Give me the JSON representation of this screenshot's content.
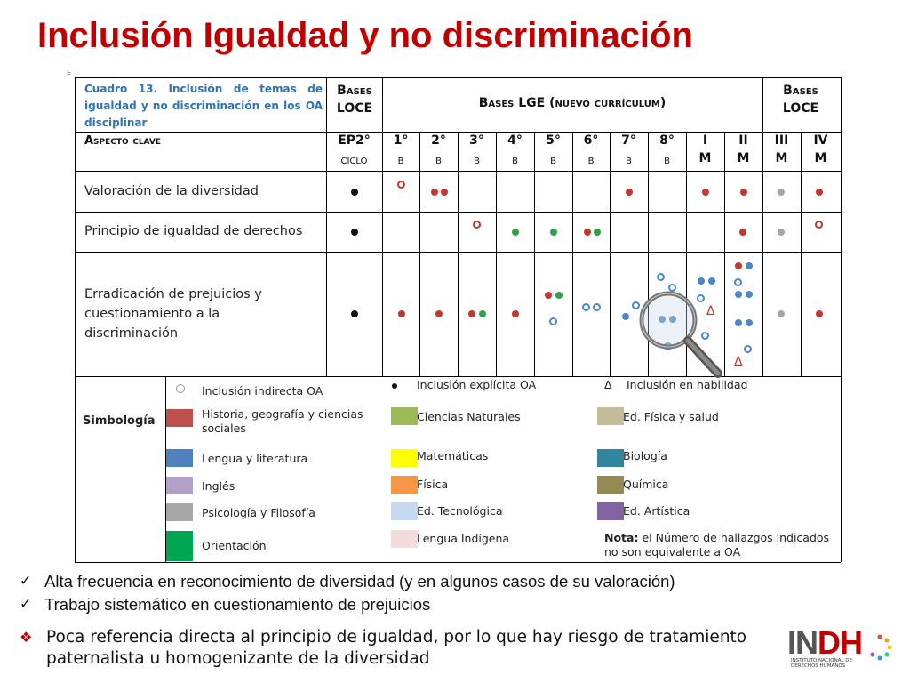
{
  "slide_title": "Inclusión Igualdad y no discriminación",
  "table": {
    "caption": "Cuadro 13. Inclusión de temas de igualdad y no discriminación en los OA disciplinar",
    "bases_loce_label": "Bases LOCE",
    "bases_lge_label": "Bases LGE (nuevo currículum)",
    "bases_loce_right_label": "Bases LOCE",
    "aspecto_label": "Aspecto clave",
    "columns": [
      {
        "num": "EP2°",
        "sub": "CICLO"
      },
      {
        "num": "1°",
        "sub": "B"
      },
      {
        "num": "2°",
        "sub": "B"
      },
      {
        "num": "3°",
        "sub": "B"
      },
      {
        "num": "4°",
        "sub": "B"
      },
      {
        "num": "5°",
        "sub": "B"
      },
      {
        "num": "6°",
        "sub": "B"
      },
      {
        "num": "7°",
        "sub": "B"
      },
      {
        "num": "8°",
        "sub": "B"
      },
      {
        "num": "I",
        "sub": "M"
      },
      {
        "num": "II",
        "sub": "M"
      },
      {
        "num": "III",
        "sub": "M"
      },
      {
        "num": "IV",
        "sub": "M"
      }
    ],
    "rows": [
      {
        "label": "Valoración de la diversidad"
      },
      {
        "label": "Principio de igualdad de derechos"
      },
      {
        "label": "Erradicación de prejuicios y cuestionamiento a la discriminación"
      }
    ],
    "marker_colors": {
      "historia": "#c0392b",
      "lengua": "#4a86c8",
      "ciencias": "#2ca24a",
      "psicologia": "#a6a6a6",
      "black": "#111111"
    },
    "legend": {
      "title": "Simbología",
      "indirect_label": "Inclusión indirecta OA",
      "explicit_label": "Inclusión explícita OA",
      "habilidad_symbol": "Δ",
      "habilidad_label": "Inclusión en habilidad",
      "items": [
        {
          "label": "Historia, geografía y ciencias sociales",
          "color": "#c0504d"
        },
        {
          "label": "Lengua y literatura",
          "color": "#4f81bd"
        },
        {
          "label": "Inglés",
          "color": "#b1a0c7"
        },
        {
          "label": "Psicología y Filosofía",
          "color": "#a6a6a6"
        },
        {
          "label": "Orientación",
          "color": "#00a651"
        },
        {
          "label": "Ciencias Naturales",
          "color": "#9bbb59"
        },
        {
          "label": "Matemáticas",
          "color": "#ffff00"
        },
        {
          "label": "Física",
          "color": "#f79646"
        },
        {
          "label": "Ed. Tecnológica",
          "color": "#c6d9f1"
        },
        {
          "label": "Lengua Indígena",
          "color": "#f2dcdb"
        },
        {
          "label": "Ed. Física y salud",
          "color": "#c4bd97"
        },
        {
          "label": "Biología",
          "color": "#31859c"
        },
        {
          "label": "Química",
          "color": "#948a54"
        },
        {
          "label": "Ed. Artística",
          "color": "#8064a2"
        }
      ],
      "note_bold": "Nota:",
      "note_text": "el Número de hallazgos indicados no son equivalente a OA"
    }
  },
  "bullets": [
    "Alta frecuencia en reconocimiento de diversidad (y en algunos casos de su valoración)",
    "Trabajo sistemático en cuestionamiento de prejuicios"
  ],
  "bullet_diamond": "Poca referencia directa al principio de igualdad, por lo que hay riesgo de tratamiento paternalista u homogenizante de la diversidad",
  "logo": {
    "main_in": "IN",
    "main_dh": "DH",
    "sub_lines": [
      "INSTITUTO NACIONAL DE",
      "DERECHOS HUMANOS"
    ]
  }
}
